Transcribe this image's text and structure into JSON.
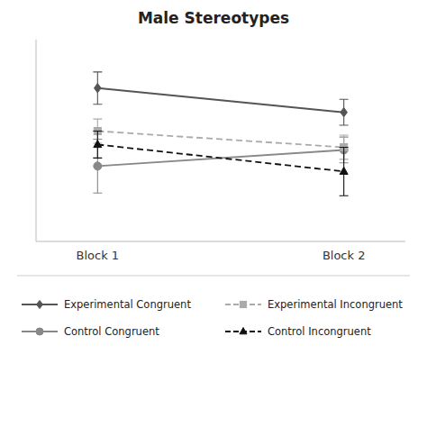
{
  "chart_data": {
    "type": "line",
    "title": "Male Stereotypes",
    "categories": [
      "Block 1",
      "Block 2"
    ],
    "series": [
      {
        "name": "Experimental Congruent",
        "color": "#555555",
        "line_style": "solid",
        "marker": "diamond",
        "values": [
          0.82,
          0.73
        ],
        "errors": [
          0.06,
          0.048
        ]
      },
      {
        "name": "Control Congruent",
        "color": "#888888",
        "line_style": "solid",
        "marker": "circle",
        "values": [
          0.53,
          0.59
        ],
        "errors": [
          0.1,
          0.048
        ]
      },
      {
        "name": "Experimental Incongruent",
        "color": "#aaaaaa",
        "line_style": "dashed",
        "marker": "square",
        "values": [
          0.66,
          0.6
        ],
        "errors": [
          0.045,
          0.045
        ]
      },
      {
        "name": "Control Incongruent",
        "color": "#111111",
        "line_style": "dashed",
        "marker": "triangle",
        "values": [
          0.61,
          0.51
        ],
        "errors": [
          0.05,
          0.09
        ]
      }
    ],
    "ylim": [
      0.25,
      1.0
    ],
    "yticks": [],
    "tick_labels": "x",
    "grid": false,
    "legend": "bottom"
  }
}
